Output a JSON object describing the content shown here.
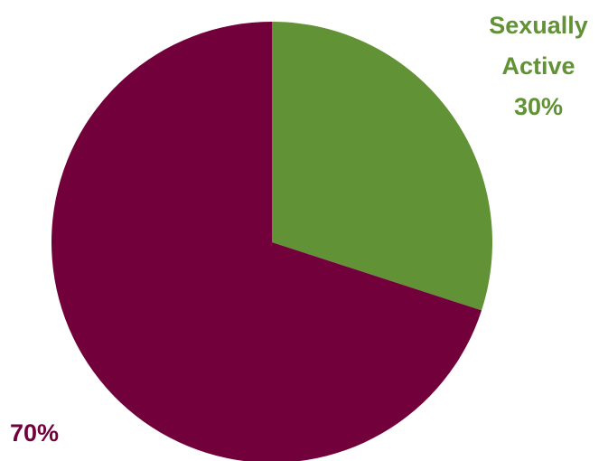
{
  "chart_data": {
    "type": "pie",
    "slices": [
      {
        "label": "Sexually Active",
        "value": 30,
        "display": "30%",
        "color": "#629236"
      },
      {
        "label": "",
        "value": 70,
        "display": "70%",
        "color": "#72003A"
      }
    ],
    "start_angle_deg": 0,
    "direction": "clockwise"
  },
  "labels": {
    "slice_0_line1": "Sexually",
    "slice_0_line2": "Active",
    "slice_0_pct": "30%",
    "slice_1_pct": "70%"
  }
}
